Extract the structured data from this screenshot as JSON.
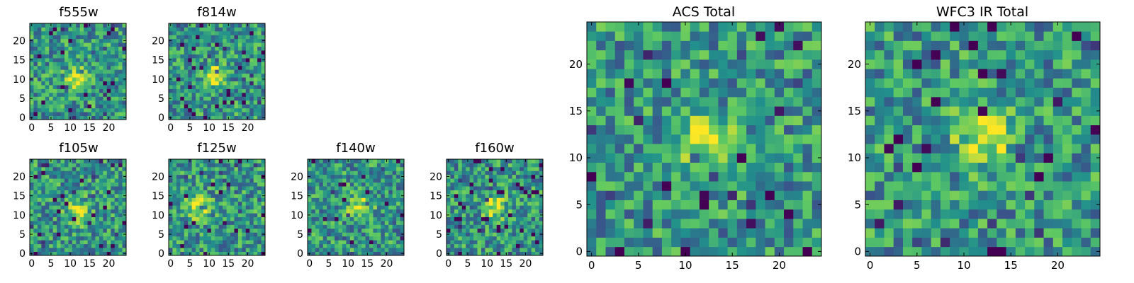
{
  "figure": {
    "colormap": [
      "#440154",
      "#3b528b",
      "#21918c",
      "#5ec962",
      "#fde725"
    ]
  },
  "chart_data": [
    {
      "type": "heatmap",
      "title": "f555w",
      "grid_size": 25,
      "xticks": [
        "0",
        "5",
        "10",
        "15",
        "20"
      ],
      "yticks": [
        "0",
        "5",
        "10",
        "15",
        "20"
      ],
      "xlim": [
        0,
        24
      ],
      "ylim": [
        0,
        24
      ],
      "bright_center": [
        12,
        10
      ],
      "seed": 11
    },
    {
      "type": "heatmap",
      "title": "f814w",
      "grid_size": 25,
      "xticks": [
        "0",
        "5",
        "10",
        "15",
        "20"
      ],
      "yticks": [
        "0",
        "5",
        "10",
        "15",
        "20"
      ],
      "xlim": [
        0,
        24
      ],
      "ylim": [
        0,
        24
      ],
      "bright_center": [
        11,
        11
      ],
      "seed": 23
    },
    {
      "type": "heatmap",
      "title": "f105w",
      "grid_size": 25,
      "xticks": [
        "0",
        "5",
        "10",
        "15",
        "20"
      ],
      "yticks": [
        "0",
        "5",
        "10",
        "15",
        "20"
      ],
      "xlim": [
        0,
        24
      ],
      "ylim": [
        0,
        24
      ],
      "bright_center": [
        12,
        11
      ],
      "seed": 37
    },
    {
      "type": "heatmap",
      "title": "f125w",
      "grid_size": 25,
      "xticks": [
        "0",
        "5",
        "10",
        "15",
        "20"
      ],
      "yticks": [
        "0",
        "5",
        "10",
        "15",
        "20"
      ],
      "xlim": [
        0,
        24
      ],
      "ylim": [
        0,
        24
      ],
      "bright_center": [
        7,
        12
      ],
      "seed": 41
    },
    {
      "type": "heatmap",
      "title": "f140w",
      "grid_size": 25,
      "xticks": [
        "0",
        "5",
        "10",
        "15",
        "20"
      ],
      "yticks": [
        "0",
        "5",
        "10",
        "15",
        "20"
      ],
      "xlim": [
        0,
        24
      ],
      "ylim": [
        0,
        24
      ],
      "bright_center": [
        13,
        12
      ],
      "seed": 53
    },
    {
      "type": "heatmap",
      "title": "f160w",
      "grid_size": 25,
      "xticks": [
        "0",
        "5",
        "10",
        "15",
        "20"
      ],
      "yticks": [
        "0",
        "5",
        "10",
        "15",
        "20"
      ],
      "xlim": [
        0,
        24
      ],
      "ylim": [
        0,
        24
      ],
      "bright_center": [
        12,
        12
      ],
      "seed": 67
    },
    {
      "type": "heatmap",
      "title": "ACS Total",
      "grid_size": 25,
      "xticks": [
        "0",
        "5",
        "10",
        "15",
        "20"
      ],
      "yticks": [
        "0",
        "5",
        "10",
        "15",
        "20"
      ],
      "xlim": [
        0,
        24
      ],
      "ylim": [
        0,
        24
      ],
      "bright_center": [
        12,
        12
      ],
      "seed": 79
    },
    {
      "type": "heatmap",
      "title": "WFC3 IR Total",
      "grid_size": 25,
      "xticks": [
        "0",
        "5",
        "10",
        "15",
        "20"
      ],
      "yticks": [
        "0",
        "5",
        "10",
        "15",
        "20"
      ],
      "xlim": [
        0,
        24
      ],
      "ylim": [
        0,
        24
      ],
      "bright_center": [
        12,
        12
      ],
      "seed": 97
    }
  ]
}
